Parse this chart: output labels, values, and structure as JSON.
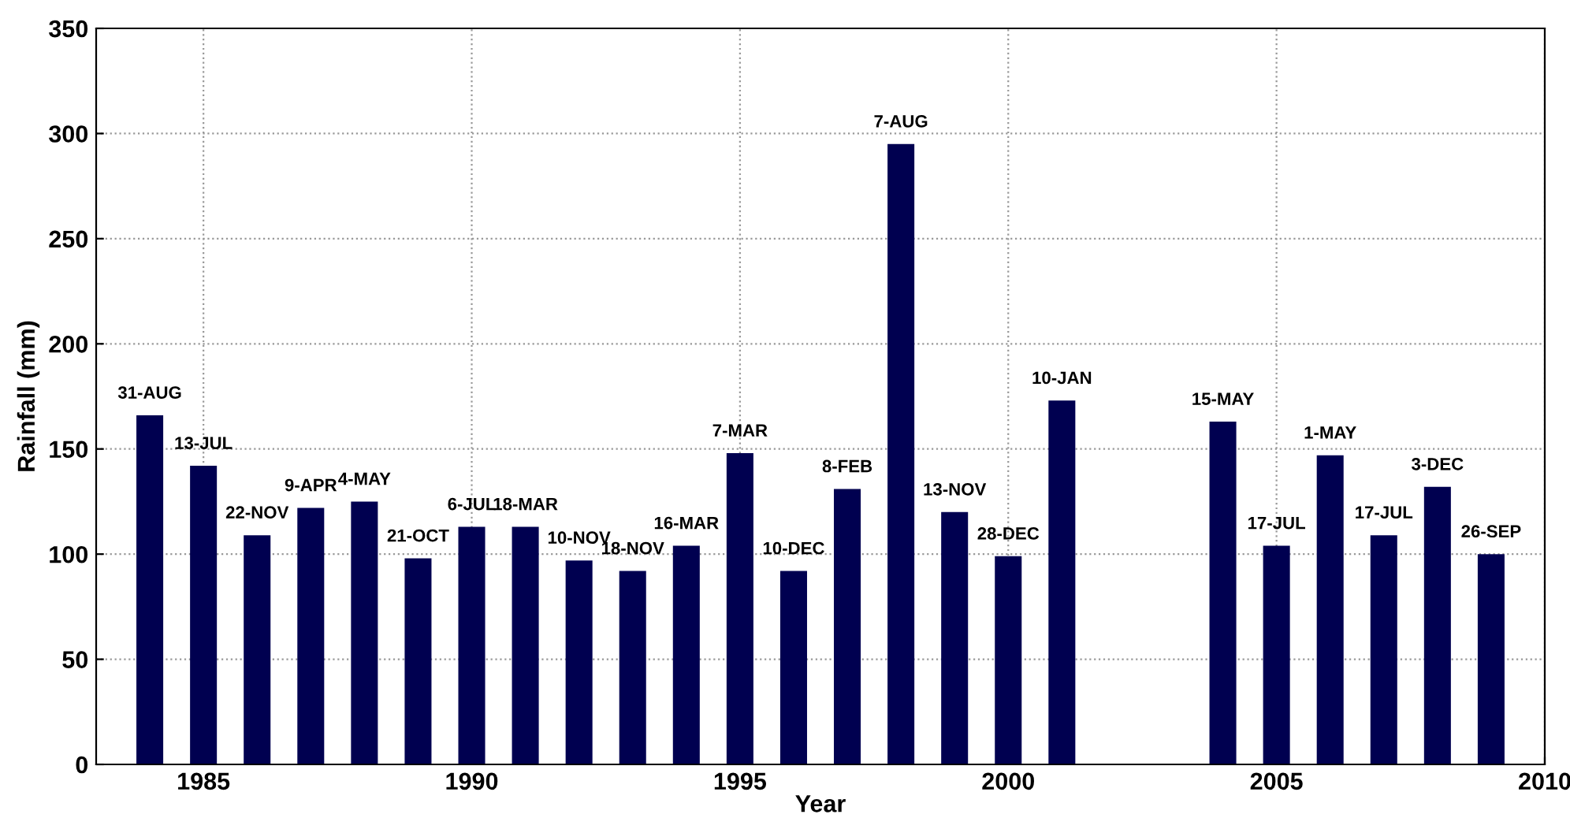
{
  "chart_data": {
    "type": "bar",
    "xlabel": "Year",
    "ylabel": "Rainfall (mm)",
    "x": [
      1984,
      1985,
      1986,
      1987,
      1988,
      1989,
      1990,
      1991,
      1992,
      1993,
      1994,
      1995,
      1996,
      1997,
      1998,
      1999,
      2000,
      2001,
      2004,
      2005,
      2006,
      2007,
      2008,
      2009
    ],
    "values": [
      166,
      142,
      109,
      122,
      125,
      98,
      113,
      113,
      97,
      92,
      104,
      148,
      92,
      131,
      295,
      120,
      99,
      173,
      163,
      104,
      147,
      109,
      132,
      100
    ],
    "color": "#000050",
    "xlim": [
      1983,
      2010
    ],
    "xticks": [
      1985,
      1990,
      1995,
      2000,
      2005,
      2010
    ],
    "ylim": [
      0,
      350
    ],
    "yticks": [
      0,
      50,
      100,
      150,
      200,
      250,
      300,
      350
    ],
    "grid": true,
    "annotations": [
      {
        "text": "31-AUG",
        "x": 1984,
        "y": 166
      },
      {
        "text": "13-JUL",
        "x": 1985,
        "y": 142
      },
      {
        "text": "22-NOV",
        "x": 1986,
        "y": 109
      },
      {
        "text": "9-APR",
        "x": 1987,
        "y": 122
      },
      {
        "text": "4-MAY",
        "x": 1988,
        "y": 125
      },
      {
        "text": "21-OCT",
        "x": 1989,
        "y": 98
      },
      {
        "text": "6-JUL",
        "x": 1990,
        "y": 113
      },
      {
        "text": "18-MAR",
        "x": 1991,
        "y": 113
      },
      {
        "text": "10-NOV",
        "x": 1992,
        "y": 97
      },
      {
        "text": "18-NOV",
        "x": 1993,
        "y": 92
      },
      {
        "text": "16-MAR",
        "x": 1994,
        "y": 104
      },
      {
        "text": "7-MAR",
        "x": 1995,
        "y": 148
      },
      {
        "text": "10-DEC",
        "x": 1996,
        "y": 92
      },
      {
        "text": "8-FEB",
        "x": 1997,
        "y": 131
      },
      {
        "text": "7-AUG",
        "x": 1998,
        "y": 295
      },
      {
        "text": "13-NOV",
        "x": 1999,
        "y": 120
      },
      {
        "text": "28-DEC",
        "x": 2000,
        "y": 99
      },
      {
        "text": "10-JAN",
        "x": 2001,
        "y": 173
      },
      {
        "text": "15-MAY",
        "x": 2004,
        "y": 163
      },
      {
        "text": "17-JUL",
        "x": 2005,
        "y": 104
      },
      {
        "text": "1-MAY",
        "x": 2006,
        "y": 147
      },
      {
        "text": "17-JUL",
        "x": 2007,
        "y": 109
      },
      {
        "text": "3-DEC",
        "x": 2008,
        "y": 132
      },
      {
        "text": "26-SEP",
        "x": 2009,
        "y": 100
      }
    ]
  }
}
